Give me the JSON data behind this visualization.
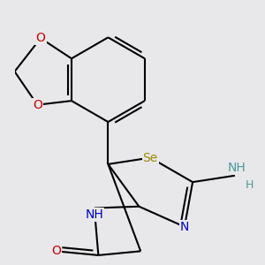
{
  "bg_color": "#e8e8ea",
  "bond_color": "#000000",
  "bond_width": 1.5,
  "atoms": {
    "Se": {
      "color": "#9b8b00",
      "fontsize": 10
    },
    "N": {
      "color": "#0000cc",
      "fontsize": 10
    },
    "O": {
      "color": "#cc0000",
      "fontsize": 10
    },
    "NH": {
      "color": "#0000cc",
      "fontsize": 10
    },
    "NH2_N": {
      "color": "#4a9a9a",
      "fontsize": 10
    },
    "NH2_H": {
      "color": "#4a9a9a",
      "fontsize": 9
    }
  },
  "figsize": [
    3.0,
    3.0
  ],
  "dpi": 100
}
